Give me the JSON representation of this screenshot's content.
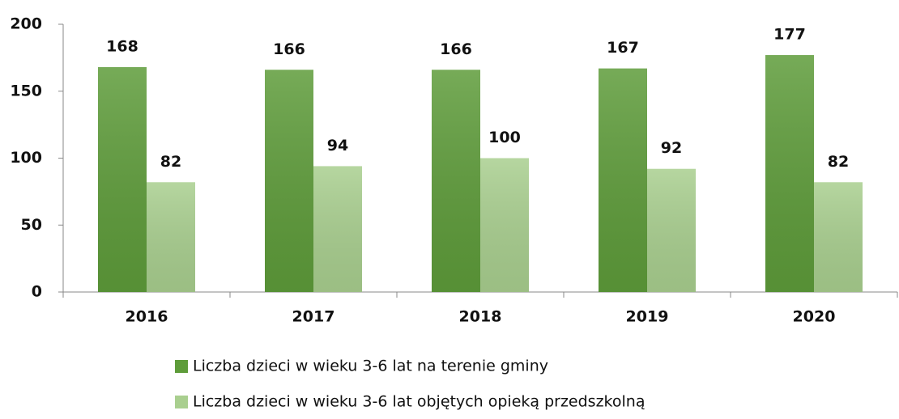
{
  "chart_data": {
    "type": "bar",
    "categories": [
      "2016",
      "2017",
      "2018",
      "2019",
      "2020"
    ],
    "series": [
      {
        "name": "Liczba dzieci w wieku 3-6 lat na terenie gminy",
        "color": "#5e9c3a",
        "values": [
          168,
          166,
          166,
          167,
          177
        ]
      },
      {
        "name": "Liczba dzieci w wieku 3-6 lat objętych opieką przedszkolną",
        "color": "#a9cf8f",
        "values": [
          82,
          94,
          100,
          92,
          82
        ]
      }
    ],
    "ylim": [
      0,
      200
    ],
    "yticks": [
      0,
      50,
      100,
      150,
      200
    ],
    "grid": false,
    "legend": "bottom"
  }
}
